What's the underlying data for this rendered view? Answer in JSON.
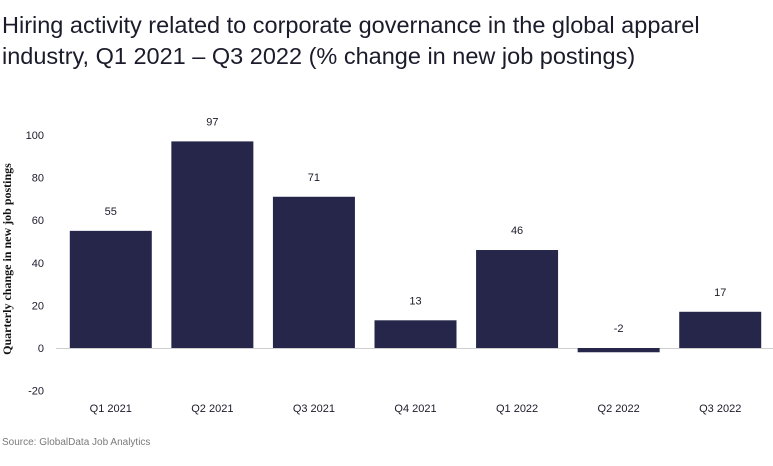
{
  "chart_data": {
    "type": "bar",
    "title": "Hiring activity related to corporate governance in the global apparel industry, Q1 2021 – Q3 2022 (% change in new job postings)",
    "xlabel": "",
    "ylabel": "Quarterly change in new job postings",
    "categories": [
      "Q1 2021",
      "Q2 2021",
      "Q3 2021",
      "Q4 2021",
      "Q1 2022",
      "Q2 2022",
      "Q3 2022"
    ],
    "values": [
      55,
      97,
      71,
      13,
      46,
      -2,
      17
    ],
    "data_labels": [
      "55",
      "97",
      "71",
      "13",
      "46",
      "-2",
      "17"
    ],
    "ylim": [
      -20,
      100
    ],
    "yticks": [
      100,
      80,
      60,
      40,
      20,
      0,
      -20
    ],
    "grid": false,
    "bar_color": "#252649",
    "source": "Source: GlobalData Job Analytics"
  }
}
